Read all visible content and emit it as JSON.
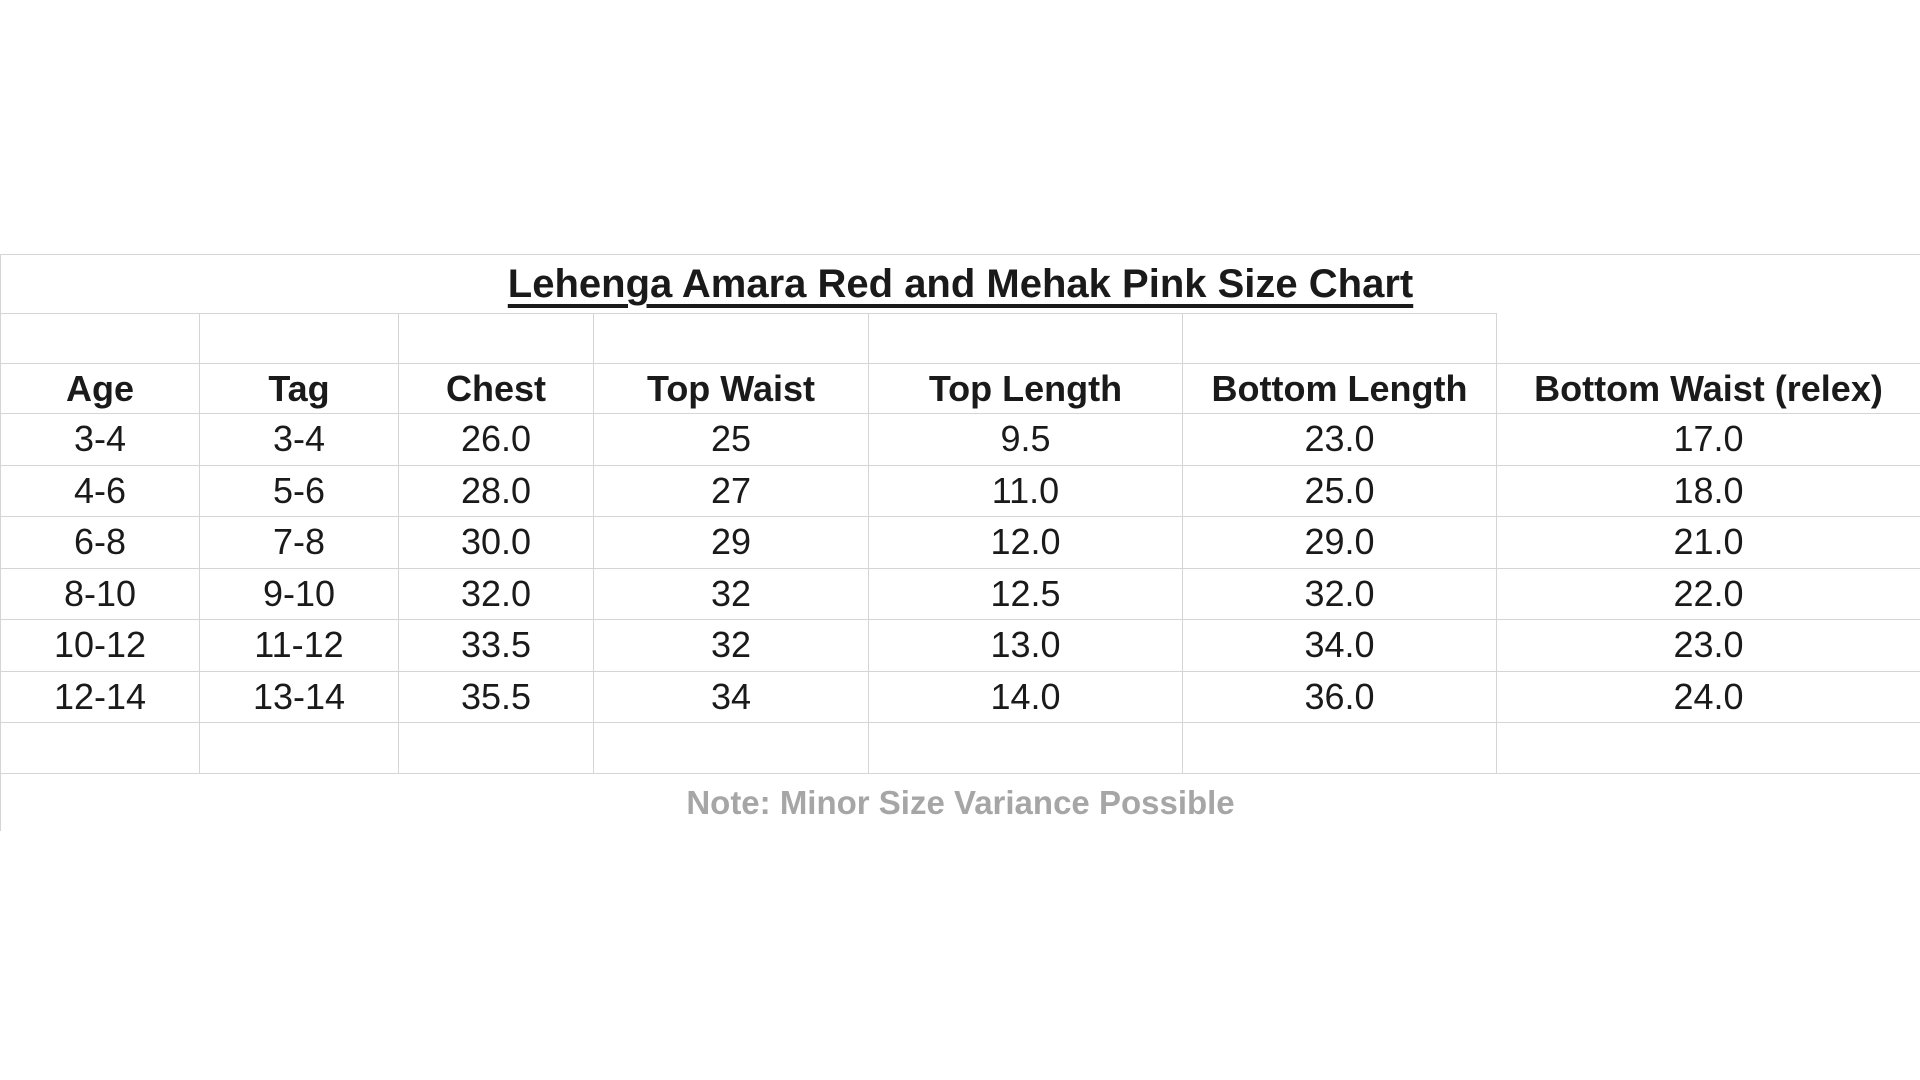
{
  "chart_data": {
    "type": "table",
    "title": "Lehenga Amara Red and Mehak Pink Size Chart",
    "columns": [
      "Age",
      "Tag",
      "Chest",
      "Top Waist",
      "Top Length",
      "Bottom Length",
      "Bottom Waist (relex)"
    ],
    "rows": [
      [
        "3-4",
        "3-4",
        "26.0",
        "25",
        "9.5",
        "23.0",
        "17.0"
      ],
      [
        "4-6",
        "5-6",
        "28.0",
        "27",
        "11.0",
        "25.0",
        "18.0"
      ],
      [
        "6-8",
        "7-8",
        "30.0",
        "29",
        "12.0",
        "29.0",
        "21.0"
      ],
      [
        "8-10",
        "9-10",
        "32.0",
        "32",
        "12.5",
        "32.0",
        "22.0"
      ],
      [
        "10-12",
        "11-12",
        "33.5",
        "32",
        "13.0",
        "34.0",
        "23.0"
      ],
      [
        "12-14",
        "13-14",
        "35.5",
        "34",
        "14.0",
        "36.0",
        "24.0"
      ]
    ],
    "note": "Note: Minor Size Variance Possible",
    "legend_position": "none",
    "grid": true
  },
  "colors": {
    "background": "#ffffff",
    "grid_line": "#d5d5d5",
    "text": "#1a1a1a",
    "title_text": "#000000",
    "note_text": "#a6a6a6"
  }
}
